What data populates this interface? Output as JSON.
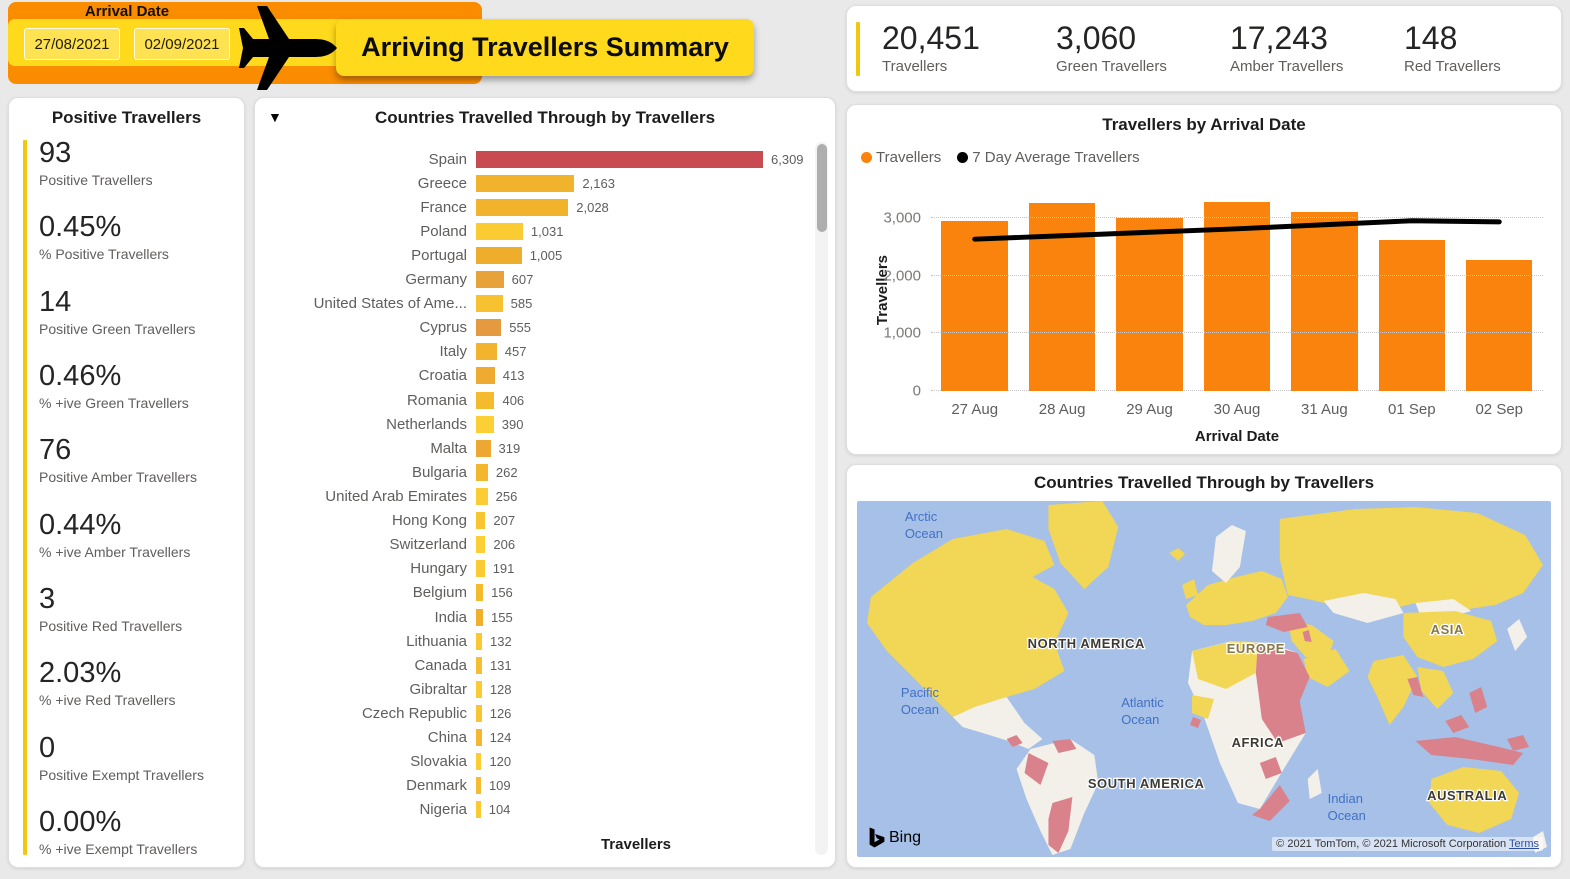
{
  "header": {
    "slicer": {
      "title": "Arrival Date",
      "start_date": "27/08/2021",
      "end_date": "02/09/2021"
    },
    "title": "Arriving Travellers Summary",
    "colors": {
      "orange": "#fa8c00",
      "yellow": "#ffd91c",
      "date_box": "#ffe252"
    }
  },
  "kpis": {
    "accent_color": "#f2c80f",
    "items": [
      {
        "value": "20,451",
        "label": "Travellers"
      },
      {
        "value": "3,060",
        "label": "Green Travellers"
      },
      {
        "value": "17,243",
        "label": "Amber Travellers"
      },
      {
        "value": "148",
        "label": "Red Travellers"
      }
    ]
  },
  "positive_panel": {
    "title": "Positive Travellers",
    "accent_color": "#f2c80f",
    "stats": [
      {
        "value": "93",
        "label": "Positive Travellers"
      },
      {
        "value": "0.45%",
        "label": "% Positive Travellers"
      },
      {
        "value": "14",
        "label": "Positive Green Travellers"
      },
      {
        "value": "0.46%",
        "label": "% +ive Green Travellers"
      },
      {
        "value": "76",
        "label": "Positive Amber Travellers"
      },
      {
        "value": "0.44%",
        "label": "% +ive Amber Travellers"
      },
      {
        "value": "3",
        "label": "Positive Red Travellers"
      },
      {
        "value": "2.03%",
        "label": "% +ive Red Travellers"
      },
      {
        "value": "0",
        "label": "Positive Exempt Travellers"
      },
      {
        "value": "0.00%",
        "label": "% +ive Exempt Travellers"
      }
    ]
  },
  "bar_panel_icons": {
    "drill_down": "▼"
  },
  "chart_data": [
    {
      "type": "bar",
      "orientation": "horizontal",
      "title": "Countries Travelled Through by Travellers",
      "xlabel": "Travellers",
      "xlim": [
        0,
        6309
      ],
      "categories": [
        "Spain",
        "Greece",
        "France",
        "Poland",
        "Portugal",
        "Germany",
        "United States of Ame...",
        "Cyprus",
        "Italy",
        "Croatia",
        "Romania",
        "Netherlands",
        "Malta",
        "Bulgaria",
        "United Arab Emirates",
        "Hong Kong",
        "Switzerland",
        "Hungary",
        "Belgium",
        "India",
        "Lithuania",
        "Canada",
        "Gibraltar",
        "Czech Republic",
        "China",
        "Slovakia",
        "Denmark",
        "Nigeria"
      ],
      "values": [
        6309,
        2163,
        2028,
        1031,
        1005,
        607,
        585,
        555,
        457,
        413,
        406,
        390,
        319,
        262,
        256,
        207,
        206,
        191,
        156,
        155,
        132,
        131,
        128,
        126,
        124,
        120,
        109,
        104
      ],
      "value_labels": [
        "6,309",
        "2,163",
        "2,028",
        "1,031",
        "1,005",
        "607",
        "585",
        "555",
        "457",
        "413",
        "406",
        "390",
        "319",
        "262",
        "256",
        "207",
        "206",
        "191",
        "156",
        "155",
        "132",
        "131",
        "128",
        "126",
        "124",
        "120",
        "109",
        "104"
      ],
      "bar_colors": [
        "#c94b52",
        "#f1b32c",
        "#f1b32c",
        "#fbcb33",
        "#eeae2b",
        "#e8a23a",
        "#f7c230",
        "#e69a40",
        "#f1b42c",
        "#eeaa31",
        "#f4bb2e",
        "#fcd035",
        "#eda833",
        "#f3b72d",
        "#fbcd34",
        "#f8c531",
        "#fcd034",
        "#facb33",
        "#f5bb2e",
        "#f0b02b",
        "#f9c832",
        "#f6bf30",
        "#facb33",
        "#f8c632",
        "#f3b82d",
        "#facd34",
        "#f5bc2f",
        "#faca33"
      ]
    },
    {
      "type": "bar",
      "title": "Travellers by Arrival Date",
      "xlabel": "Arrival Date",
      "ylabel": "Travellers",
      "ylim": [
        0,
        3500
      ],
      "ytick_values": [
        0,
        1000,
        2000,
        3000
      ],
      "ytick_labels": [
        "0",
        "1,000",
        "2,000",
        "3,000"
      ],
      "legend_position": "top-left",
      "grid": "dotted-horizontal",
      "categories": [
        "27 Aug",
        "28 Aug",
        "29 Aug",
        "30 Aug",
        "31 Aug",
        "01 Sep",
        "02 Sep"
      ],
      "series": [
        {
          "name": "Travellers",
          "render": "bar",
          "color": "#f9830d",
          "values": [
            2940,
            3250,
            3000,
            3280,
            3100,
            2610,
            2271
          ]
        },
        {
          "name": "7 Day Average Travellers",
          "render": "line",
          "color": "#000000",
          "values": [
            2630,
            2690,
            2750,
            2810,
            2880,
            2950,
            2930
          ]
        }
      ]
    }
  ],
  "map_panel": {
    "title": "Countries Travelled Through by Travellers",
    "bing_label": "Bing",
    "attribution": {
      "text": "© 2021 TomTom, © 2021 Microsoft Corporation",
      "terms_label": "Terms"
    },
    "colors": {
      "ocean": "#a6c0e7",
      "country_visited": "#f2d655",
      "country_none": "#f3f0ea",
      "country_red": "#d9828b"
    },
    "labels": {
      "arctic_line1": "Arctic",
      "arctic_line2": "Ocean",
      "pacific_line1": "Pacific",
      "pacific_line2": "Ocean",
      "atlantic_line1": "Atlantic",
      "atlantic_line2": "Ocean",
      "indian_line1": "Indian",
      "indian_line2": "Ocean",
      "north_america": "NORTH AMERICA",
      "south_america": "SOUTH AMERICA",
      "europe": "EUROPE",
      "africa": "AFRICA",
      "asia": "ASIA",
      "australia": "AUSTRALIA"
    }
  }
}
